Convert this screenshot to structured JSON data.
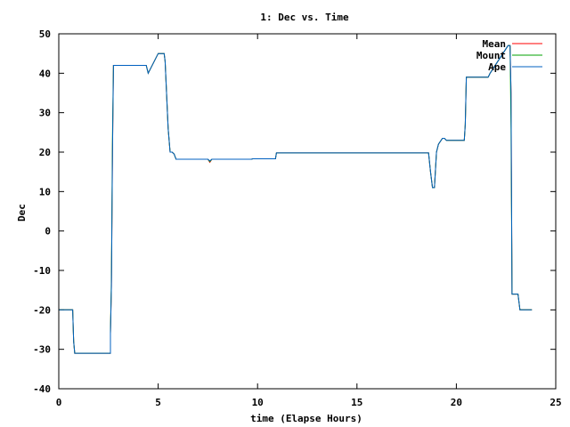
{
  "chart_data": {
    "type": "line",
    "title": "1: Dec vs. Time",
    "xlabel": "time (Elapse Hours)",
    "ylabel": "Dec",
    "xlim": [
      0,
      25
    ],
    "ylim": [
      -40,
      50
    ],
    "xticks": [
      0,
      5,
      10,
      15,
      20,
      25
    ],
    "yticks": [
      -40,
      -30,
      -20,
      -10,
      0,
      10,
      20,
      30,
      40,
      50
    ],
    "grid": false,
    "legend_position": "top-right",
    "series": [
      {
        "name": "Mean",
        "color": "#ff0000",
        "x": [
          0.0,
          0.7,
          0.75,
          0.8,
          2.6,
          2.6,
          2.65,
          2.7,
          2.75,
          4.4,
          4.5,
          5.0,
          5.3,
          5.35,
          5.5,
          5.6,
          5.7,
          5.8,
          5.9,
          7.5,
          7.6,
          7.7,
          9.7,
          9.75,
          10.9,
          10.95,
          18.6,
          18.7,
          18.8,
          18.9,
          19.0,
          19.1,
          19.3,
          19.4,
          19.5,
          20.4,
          20.45,
          20.5,
          21.6,
          21.7,
          22.6,
          22.7,
          22.75,
          22.8,
          23.0,
          23.1,
          23.2,
          23.8
        ],
        "y": [
          -20,
          -20,
          -28,
          -31,
          -31,
          -26,
          -14,
          20,
          42,
          42,
          40,
          45,
          45,
          43,
          26,
          20,
          20,
          19.5,
          18.2,
          18.2,
          17.4,
          18.2,
          18.2,
          18.3,
          18.3,
          19.8,
          19.8,
          15,
          11,
          11,
          20,
          22,
          23.5,
          23.5,
          23,
          23,
          27,
          39,
          39,
          40,
          47,
          47,
          35,
          -16,
          -16,
          -16,
          -20,
          -20
        ]
      },
      {
        "name": "Mount",
        "color": "#00a000",
        "x": [
          0.0,
          0.7,
          0.75,
          0.8,
          2.6,
          2.6,
          2.65,
          2.7,
          2.75,
          4.4,
          4.5,
          5.0,
          5.3,
          5.35,
          5.5,
          5.6,
          5.7,
          5.8,
          5.9,
          7.5,
          7.6,
          7.7,
          9.7,
          9.75,
          10.9,
          10.95,
          18.6,
          18.7,
          18.8,
          18.9,
          19.0,
          19.1,
          19.3,
          19.4,
          19.5,
          20.4,
          20.45,
          20.5,
          21.6,
          21.7,
          22.6,
          22.7,
          22.75,
          22.8,
          23.0,
          23.1,
          23.2,
          23.8
        ],
        "y": [
          -20,
          -20,
          -28,
          -31,
          -31,
          -26,
          -12,
          24,
          42,
          42,
          40,
          45,
          45,
          43,
          26,
          20,
          20,
          19.5,
          18.2,
          18.2,
          17.6,
          18.2,
          18.2,
          18.3,
          18.3,
          19.8,
          19.8,
          15,
          11,
          11,
          20,
          22,
          23.5,
          23.5,
          23,
          23,
          27,
          39,
          39,
          40,
          47,
          47,
          26,
          -16,
          -16,
          -16,
          -20,
          -20
        ]
      },
      {
        "name": "Ape",
        "color": "#0060c0",
        "x": [
          0.0,
          0.7,
          0.75,
          0.8,
          2.6,
          2.6,
          2.65,
          2.7,
          2.75,
          4.4,
          4.5,
          5.0,
          5.3,
          5.35,
          5.5,
          5.6,
          5.7,
          5.8,
          5.9,
          7.5,
          7.6,
          7.7,
          9.7,
          9.75,
          10.9,
          10.95,
          18.6,
          18.7,
          18.8,
          18.9,
          19.0,
          19.1,
          19.3,
          19.4,
          19.5,
          20.4,
          20.45,
          20.5,
          21.6,
          21.7,
          22.6,
          22.7,
          22.75,
          22.8,
          23.0,
          23.1,
          23.2,
          23.8
        ],
        "y": [
          -20,
          -20,
          -28,
          -31,
          -31,
          -26,
          -14,
          20,
          42,
          42,
          40,
          45,
          45,
          43,
          26,
          20,
          20,
          19.5,
          18.2,
          18.2,
          17.8,
          18.2,
          18.2,
          18.3,
          18.3,
          19.8,
          19.8,
          15,
          11,
          11,
          20,
          22,
          23.5,
          23.5,
          23,
          23,
          27,
          39,
          39,
          40,
          47,
          47,
          35,
          -16,
          -16,
          -16,
          -20,
          -20
        ]
      }
    ]
  }
}
